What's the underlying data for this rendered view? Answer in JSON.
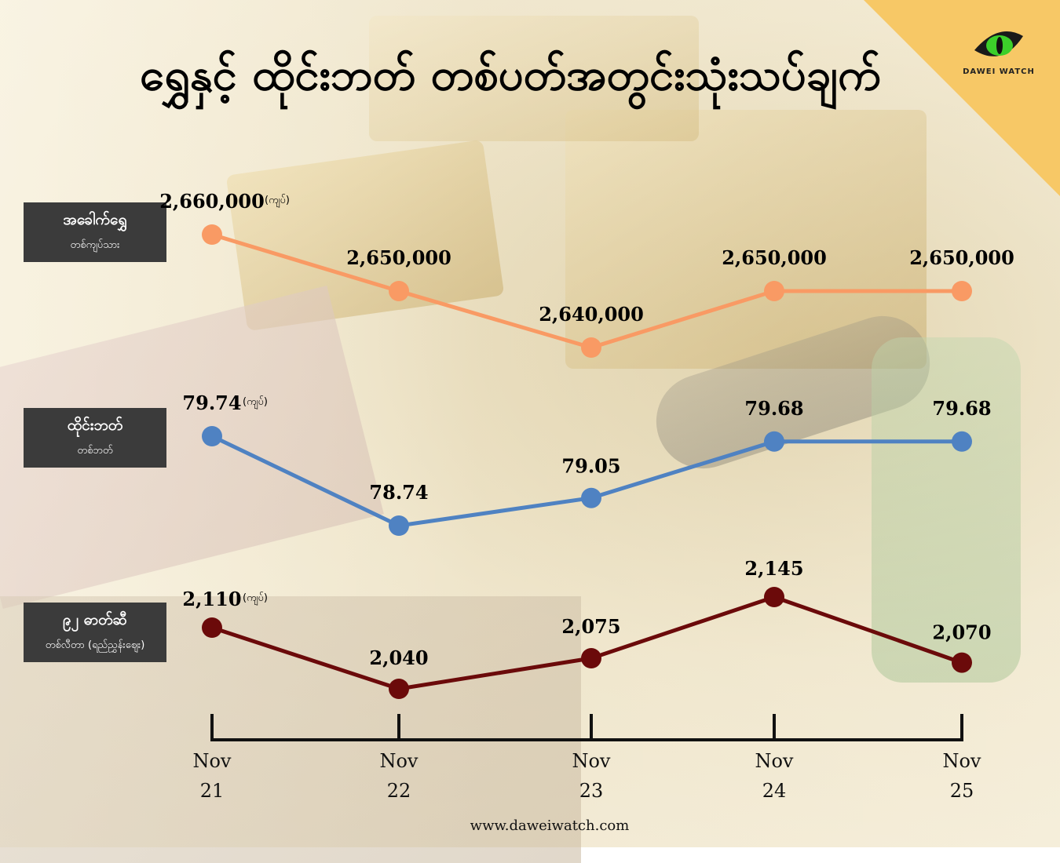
{
  "title": "ရွှေနှင့် ထိုင်းဘတ် တစ်ပတ်အတွင်းသုံးသပ်ချက်",
  "brand": "DAWEI WATCH",
  "website": "www.daweiwatch.com",
  "unit_note": "(ကျပ်)",
  "colors": {
    "gold": "#f99a64",
    "baht": "#4f82c2",
    "fuel": "#6b0a0a",
    "corner": "#f7c866",
    "label_bg": "#3b3b3b",
    "axis": "#111111"
  },
  "labels": {
    "gold": {
      "main": "အခေါက်ရွှေ",
      "sub": "တစ်ကျပ်သား"
    },
    "baht": {
      "main": "ထိုင်းဘတ်",
      "sub": "တစ်ဘတ်"
    },
    "fuel": {
      "main": "၉၂ ဓာတ်ဆီ",
      "sub": "တစ်လီတာ (ရည်ညွှန်းဈေး)"
    }
  },
  "chart_data": [
    {
      "type": "line",
      "series_key": "gold",
      "x": [
        "Nov 21",
        "Nov 22",
        "Nov 23",
        "Nov 24",
        "Nov 25"
      ],
      "values": [
        2660000,
        2650000,
        2640000,
        2650000,
        2650000
      ],
      "value_labels": [
        "2,660,000",
        "2,650,000",
        "2,640,000",
        "2,650,000",
        "2,650,000"
      ]
    },
    {
      "type": "line",
      "series_key": "baht",
      "x": [
        "Nov 21",
        "Nov 22",
        "Nov 23",
        "Nov 24",
        "Nov 25"
      ],
      "values": [
        79.74,
        78.74,
        79.05,
        79.68,
        79.68
      ],
      "value_labels": [
        "79.74",
        "78.74",
        "79.05",
        "79.68",
        "79.68"
      ]
    },
    {
      "type": "line",
      "series_key": "fuel",
      "x": [
        "Nov 21",
        "Nov 22",
        "Nov 23",
        "Nov 24",
        "Nov 25"
      ],
      "values": [
        2110,
        2040,
        2075,
        2145,
        2070
      ],
      "value_labels": [
        "2,110",
        "2,040",
        "2,075",
        "2,145",
        "2,070"
      ]
    }
  ],
  "x_axis": {
    "ticks": [
      {
        "month": "Nov",
        "day": "21"
      },
      {
        "month": "Nov",
        "day": "22"
      },
      {
        "month": "Nov",
        "day": "23"
      },
      {
        "month": "Nov",
        "day": "24"
      },
      {
        "month": "Nov",
        "day": "25"
      }
    ]
  }
}
